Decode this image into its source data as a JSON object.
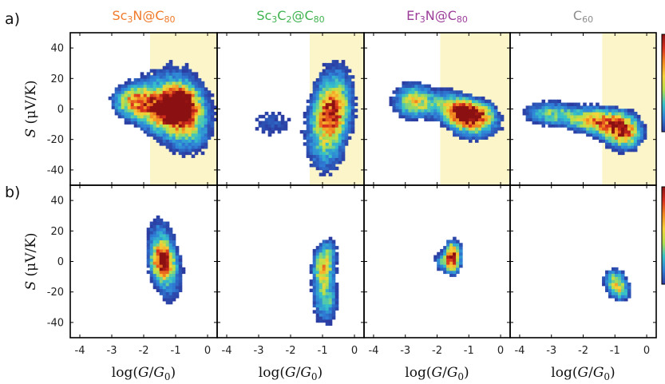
{
  "panel_labels": [
    "a)",
    "b)"
  ],
  "chart_data": {
    "type": "heatmap",
    "description_of_layout": "2 rows x 4 columns of 2D density maps (thermopower S vs log conductance)",
    "columns": [
      {
        "id": "sc3n",
        "title": "Sc3N@C80",
        "title_parts": [
          [
            "Sc",
            ""
          ],
          [
            "3",
            "sub"
          ],
          [
            "N@C",
            ""
          ],
          [
            "80",
            "sub"
          ]
        ],
        "color": "#f07a2a",
        "highlight_x": [
          -1.8,
          0.3
        ]
      },
      {
        "id": "sc3c2",
        "title": "Sc3C2@C80",
        "title_parts": [
          [
            "Sc",
            ""
          ],
          [
            "3",
            "sub"
          ],
          [
            "C",
            ""
          ],
          [
            "2",
            "sub"
          ],
          [
            "@C",
            ""
          ],
          [
            "80",
            "sub"
          ]
        ],
        "color": "#3fb34f",
        "highlight_x": [
          -1.4,
          0.3
        ]
      },
      {
        "id": "er3n",
        "title": "Er3N@C80",
        "title_parts": [
          [
            "Er",
            ""
          ],
          [
            "3",
            "sub"
          ],
          [
            "N@C",
            ""
          ],
          [
            "80",
            "sub"
          ]
        ],
        "color": "#9c3d9a",
        "highlight_x": [
          -1.9,
          0.3
        ]
      },
      {
        "id": "c60",
        "title": "C60",
        "title_parts": [
          [
            "C",
            ""
          ],
          [
            "60",
            "sub"
          ]
        ],
        "color": "#8c8c8c",
        "highlight_x": [
          -1.4,
          0.3
        ]
      }
    ],
    "xlim": [
      -4.3,
      0.3
    ],
    "ylim": [
      -50,
      50
    ],
    "xticks": [
      -4,
      -3,
      -2,
      -1,
      0
    ],
    "xtick_labels": [
      "-4",
      "-3",
      "-2",
      "-1",
      "0"
    ],
    "yticks": [
      -40,
      -20,
      0,
      20,
      40
    ],
    "ytick_labels": [
      "-40",
      "-20",
      "0",
      "20",
      "40"
    ],
    "ylabel": "S (μV/K)",
    "xlabel": "log(G/G₀)",
    "highlight_color": "#fbf5c9",
    "colormap": [
      "#2b3aa0",
      "#2f7fd8",
      "#35c2c9",
      "#b4e04a",
      "#f6d33a",
      "#f28a20",
      "#d8301e",
      "#8a1012"
    ],
    "rows": [
      {
        "id": "a",
        "blobs": {
          "sc3n": [
            {
              "x": -2.3,
              "y": 5,
              "sx": 0.4,
              "sy": 7,
              "w": 0.7
            },
            {
              "x": -1.4,
              "y": 0,
              "sx": 0.45,
              "sy": 9,
              "w": 0.8
            },
            {
              "x": -0.8,
              "y": 2,
              "sx": 0.35,
              "sy": 8,
              "w": 1.0
            },
            {
              "x": -0.6,
              "y": -12,
              "sx": 0.5,
              "sy": 12,
              "w": 0.4
            },
            {
              "x": -1.1,
              "y": 10,
              "sx": 0.7,
              "sy": 16,
              "w": 0.25
            }
          ],
          "sc3c2": [
            {
              "x": -0.7,
              "y": -2,
              "sx": 0.35,
              "sy": 10,
              "w": 0.75
            },
            {
              "x": -0.9,
              "y": -20,
              "sx": 0.4,
              "sy": 14,
              "w": 0.45
            },
            {
              "x": -2.6,
              "y": -10,
              "sx": 0.5,
              "sy": 8,
              "w": 0.18
            },
            {
              "x": -0.6,
              "y": 15,
              "sx": 0.4,
              "sy": 12,
              "w": 0.3
            }
          ],
          "er3n": [
            {
              "x": -2.7,
              "y": 5,
              "sx": 0.4,
              "sy": 7,
              "w": 0.65
            },
            {
              "x": -1.0,
              "y": -3,
              "sx": 0.4,
              "sy": 5,
              "w": 1.2
            },
            {
              "x": -0.8,
              "y": -9,
              "sx": 0.5,
              "sy": 7,
              "w": 0.5
            },
            {
              "x": -1.6,
              "y": 3,
              "sx": 0.4,
              "sy": 6,
              "w": 0.45
            }
          ],
          "c60": [
            {
              "x": -3.0,
              "y": -3,
              "sx": 0.55,
              "sy": 5,
              "w": 0.45
            },
            {
              "x": -1.8,
              "y": -7,
              "sx": 0.5,
              "sy": 5,
              "w": 0.55
            },
            {
              "x": -0.7,
              "y": -15,
              "sx": 0.35,
              "sy": 7,
              "w": 0.8
            },
            {
              "x": -1.2,
              "y": -10,
              "sx": 0.4,
              "sy": 6,
              "w": 0.5
            }
          ]
        }
      },
      {
        "id": "b",
        "blobs": {
          "sc3n": [
            {
              "x": -1.4,
              "y": 0,
              "sx": 0.22,
              "sy": 7,
              "w": 1.0
            },
            {
              "x": -1.2,
              "y": -10,
              "sx": 0.3,
              "sy": 12,
              "w": 0.32
            },
            {
              "x": -1.5,
              "y": 15,
              "sx": 0.28,
              "sy": 10,
              "w": 0.3
            }
          ],
          "sc3c2": [
            {
              "x": -1.0,
              "y": -5,
              "sx": 0.2,
              "sy": 8,
              "w": 0.55
            },
            {
              "x": -0.9,
              "y": -25,
              "sx": 0.25,
              "sy": 10,
              "w": 0.45
            },
            {
              "x": -0.8,
              "y": 5,
              "sx": 0.2,
              "sy": 8,
              "w": 0.3
            }
          ],
          "er3n": [
            {
              "x": -1.5,
              "y": 3,
              "sx": 0.16,
              "sy": 6,
              "w": 1.1
            },
            {
              "x": -1.8,
              "y": 0,
              "sx": 0.2,
              "sy": 4,
              "w": 0.3
            }
          ],
          "c60": [
            {
              "x": -1.0,
              "y": -13,
              "sx": 0.22,
              "sy": 5,
              "w": 0.55
            },
            {
              "x": -0.8,
              "y": -20,
              "sx": 0.2,
              "sy": 4,
              "w": 0.4
            }
          ]
        }
      }
    ]
  }
}
